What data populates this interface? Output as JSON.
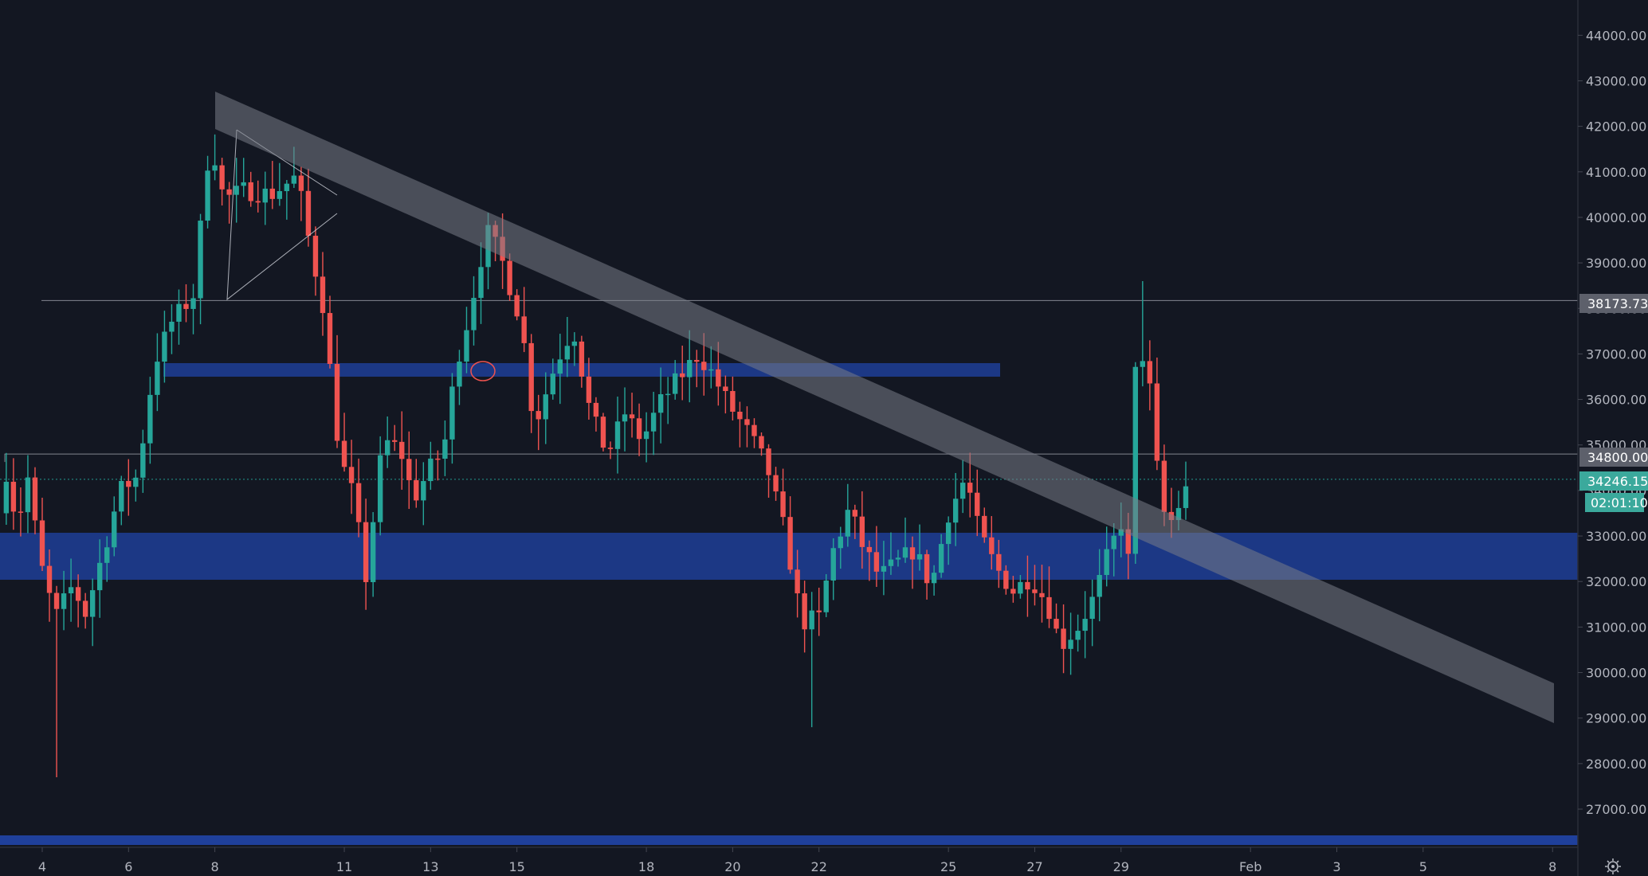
{
  "chart_data": {
    "type": "candlestick",
    "ylim": [
      26000,
      45000
    ],
    "y_ticks": [
      27000,
      28000,
      29000,
      30000,
      31000,
      32000,
      33000,
      34000,
      35000,
      36000,
      37000,
      38000,
      39000,
      40000,
      41000,
      42000,
      43000,
      44000
    ],
    "y_tick_labels": [
      "27000.00",
      "28000.00",
      "29000.00",
      "30000.00",
      "31000.00",
      "32000.00",
      "33000.00",
      "34000.00",
      "35000.00",
      "36000.00",
      "37000.00",
      "38000.00",
      "39000.00",
      "40000.00",
      "41000.00",
      "42000.00",
      "43000.00",
      "44000.00"
    ],
    "x_ticks": [
      {
        "day": 4,
        "label": "4"
      },
      {
        "day": 6,
        "label": "6"
      },
      {
        "day": 8,
        "label": "8"
      },
      {
        "day": 11,
        "label": "11"
      },
      {
        "day": 13,
        "label": "13"
      },
      {
        "day": 15,
        "label": "15"
      },
      {
        "day": 18,
        "label": "18"
      },
      {
        "day": 20,
        "label": "20"
      },
      {
        "day": 22,
        "label": "22"
      },
      {
        "day": 25,
        "label": "25"
      },
      {
        "day": 27,
        "label": "27"
      },
      {
        "day": 29,
        "label": "29"
      },
      {
        "day": 32,
        "label": "Feb"
      },
      {
        "day": 34,
        "label": "3"
      },
      {
        "day": 36,
        "label": "5"
      },
      {
        "day": 39,
        "label": "8"
      }
    ],
    "xlim": [
      3.0,
      39.5
    ],
    "candle_pivots": [
      [
        3.0,
        33500
      ],
      [
        3.2,
        34600
      ],
      [
        3.4,
        33200
      ],
      [
        3.7,
        34400
      ],
      [
        3.9,
        32600
      ],
      [
        4.3,
        31200
      ],
      [
        4.7,
        31900
      ],
      [
        5.0,
        31300
      ],
      [
        5.4,
        32600
      ],
      [
        5.8,
        34000
      ],
      [
        6.2,
        34300
      ],
      [
        6.6,
        36800
      ],
      [
        7.0,
        37700
      ],
      [
        7.5,
        38300
      ],
      [
        7.9,
        41800
      ],
      [
        8.2,
        40400
      ],
      [
        8.7,
        40600
      ],
      [
        9.3,
        40500
      ],
      [
        9.9,
        40900
      ],
      [
        10.2,
        39400
      ],
      [
        10.5,
        38100
      ],
      [
        10.9,
        34700
      ],
      [
        11.2,
        33900
      ],
      [
        11.5,
        32100
      ],
      [
        11.9,
        35100
      ],
      [
        12.3,
        34900
      ],
      [
        12.6,
        33800
      ],
      [
        13.0,
        34500
      ],
      [
        13.3,
        34900
      ],
      [
        13.6,
        36800
      ],
      [
        13.9,
        37900
      ],
      [
        14.3,
        39700
      ],
      [
        14.6,
        39200
      ],
      [
        15.1,
        37700
      ],
      [
        15.4,
        35400
      ],
      [
        15.9,
        36800
      ],
      [
        16.3,
        37600
      ],
      [
        16.7,
        35700
      ],
      [
        17.1,
        34800
      ],
      [
        17.5,
        35700
      ],
      [
        17.9,
        35100
      ],
      [
        18.3,
        35900
      ],
      [
        18.7,
        36400
      ],
      [
        19.2,
        37000
      ],
      [
        19.5,
        36600
      ],
      [
        19.9,
        35900
      ],
      [
        20.4,
        35200
      ],
      [
        20.8,
        34500
      ],
      [
        21.2,
        33100
      ],
      [
        21.6,
        31100
      ],
      [
        22.0,
        31200
      ],
      [
        22.3,
        32600
      ],
      [
        22.7,
        33600
      ],
      [
        23.0,
        32800
      ],
      [
        23.4,
        32100
      ],
      [
        23.8,
        32400
      ],
      [
        24.2,
        32700
      ],
      [
        24.6,
        31900
      ],
      [
        25.0,
        33500
      ],
      [
        25.4,
        34300
      ],
      [
        25.7,
        33100
      ],
      [
        26.1,
        32300
      ],
      [
        26.5,
        31800
      ],
      [
        26.9,
        32100
      ],
      [
        27.3,
        31500
      ],
      [
        27.6,
        30600
      ],
      [
        28.0,
        31000
      ],
      [
        28.4,
        31700
      ],
      [
        28.7,
        32600
      ],
      [
        29.0,
        33300
      ],
      [
        29.2,
        32300
      ],
      [
        29.35,
        37100
      ],
      [
        29.6,
        36900
      ],
      [
        29.9,
        33800
      ],
      [
        30.1,
        33200
      ],
      [
        30.3,
        33600
      ],
      [
        30.55,
        34100
      ]
    ],
    "last_candle": {
      "open": 33500,
      "high": 34450,
      "low": 33300,
      "close": 34246
    }
  },
  "price_axis": {
    "levels": {
      "upper": {
        "price": 38173.73,
        "label": "38173.73"
      },
      "middle": {
        "price": 34800,
        "label": "34800.00"
      }
    },
    "current": {
      "price": 34246.15,
      "label": "34246.15",
      "countdown": "02:01:10"
    }
  },
  "colors": {
    "background": "#131722",
    "up": "#26a69a",
    "down": "#ef5350",
    "zone": "#2962ff",
    "axis_text": "#b2b5be",
    "level_tag": "#5d606b",
    "current_tag": "#3ba99c"
  },
  "icons": {
    "settings": "gear-icon"
  }
}
